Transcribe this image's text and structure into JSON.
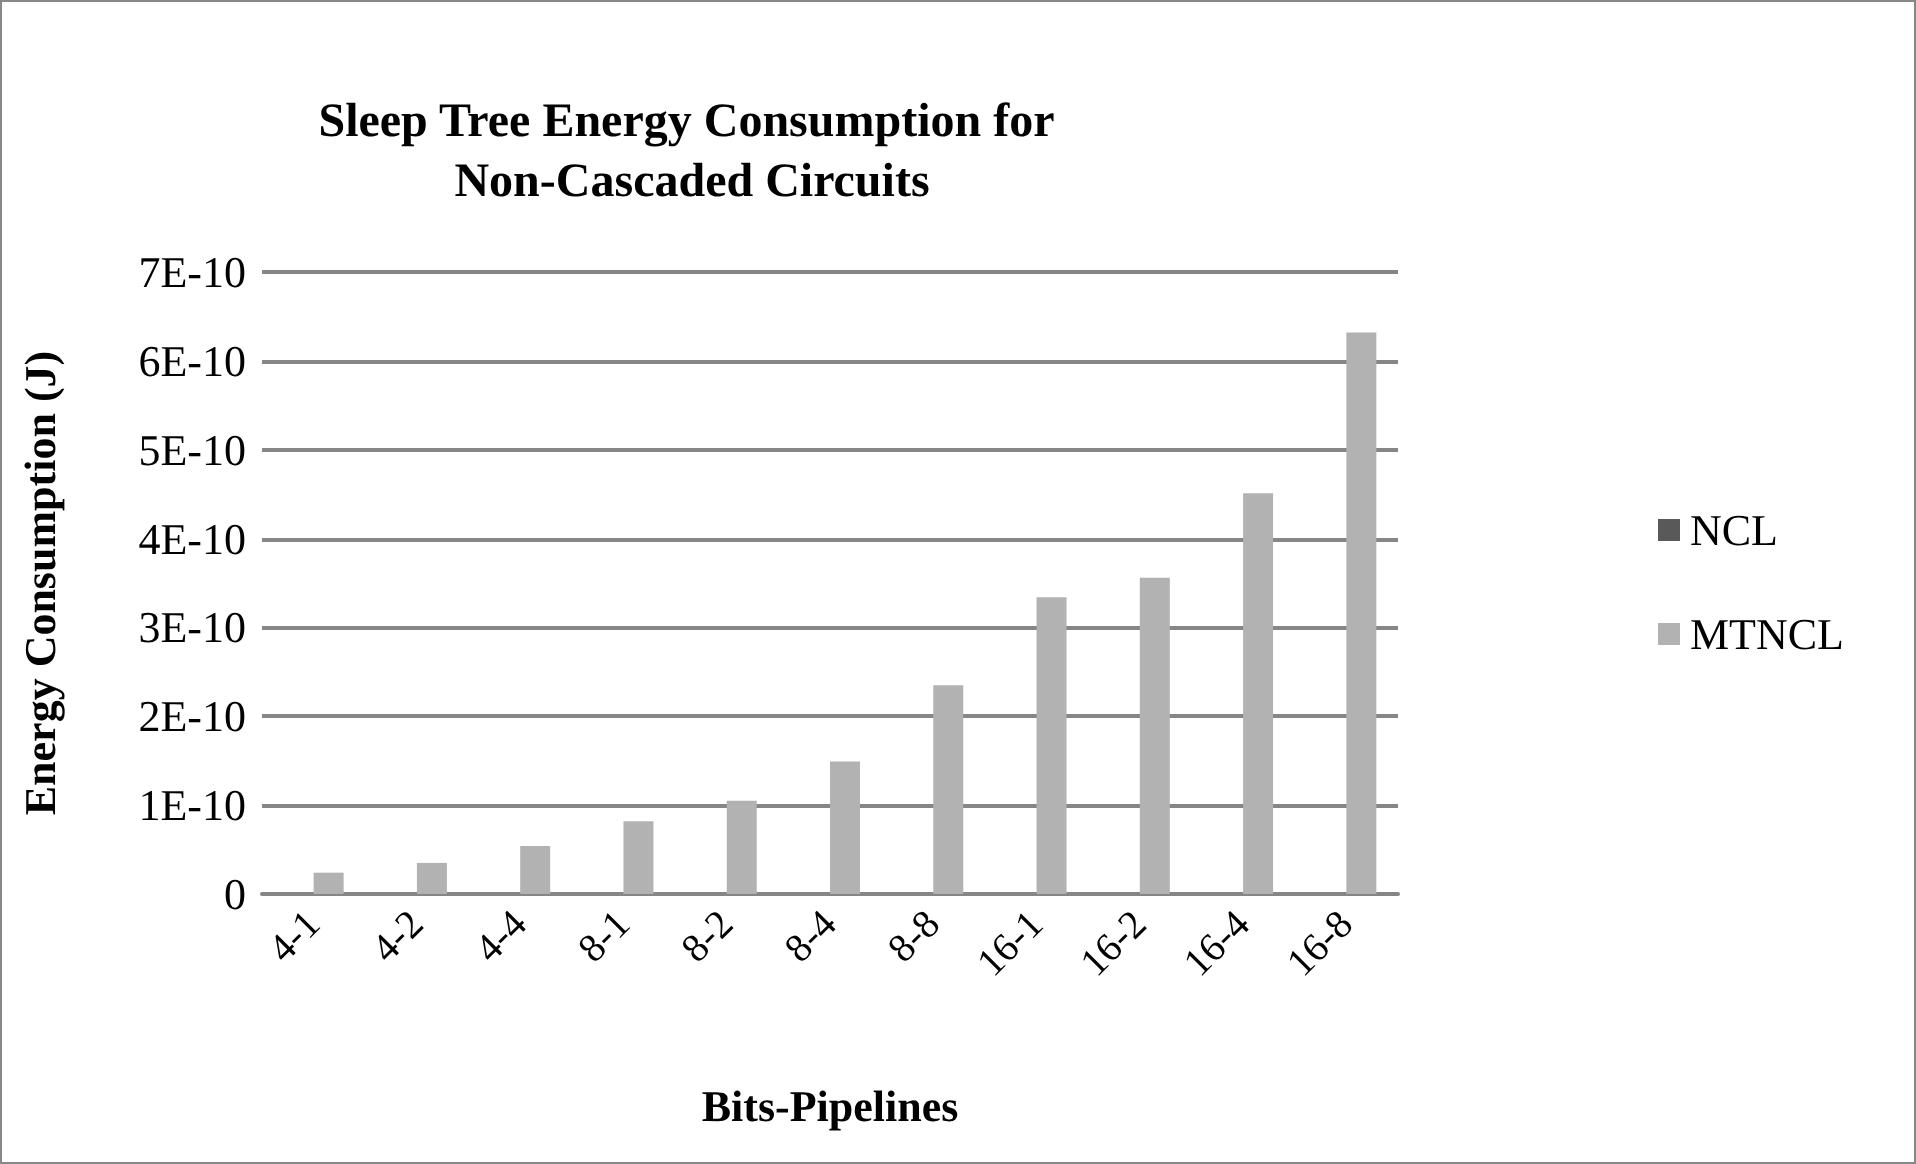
{
  "chart_data": {
    "type": "bar",
    "title": "Sleep Tree Energy Consumption for Non-Cascaded Circuits",
    "xlabel": "Bits-Pipelines",
    "ylabel": "Energy Consumption (J)",
    "categories": [
      "4-1",
      "4-2",
      "4-4",
      "8-1",
      "8-2",
      "8-4",
      "8-8",
      "16-1",
      "16-2",
      "16-4",
      "16-8"
    ],
    "series": [
      {
        "name": "NCL",
        "color": "#595959",
        "values": [
          0,
          0,
          0,
          0,
          0,
          0,
          0,
          0,
          0,
          0,
          0
        ]
      },
      {
        "name": "MTNCL",
        "color": "#b2b2b2",
        "values": [
          2.4e-11,
          3.5e-11,
          5.4e-11,
          8.2e-11,
          1.05e-10,
          1.49e-10,
          2.35e-10,
          3.34e-10,
          3.56e-10,
          4.51e-10,
          6.32e-10
        ]
      }
    ],
    "ylim": [
      0,
      7e-10
    ],
    "yticks": [
      {
        "value": 0,
        "label": "0"
      },
      {
        "value": 1e-10,
        "label": "1E-10"
      },
      {
        "value": 2e-10,
        "label": "2E-10"
      },
      {
        "value": 3e-10,
        "label": "3E-10"
      },
      {
        "value": 4e-10,
        "label": "4E-10"
      },
      {
        "value": 5e-10,
        "label": "5E-10"
      },
      {
        "value": 6e-10,
        "label": "6E-10"
      },
      {
        "value": 7e-10,
        "label": "7E-10"
      }
    ],
    "grid": "y",
    "legend": "right"
  }
}
